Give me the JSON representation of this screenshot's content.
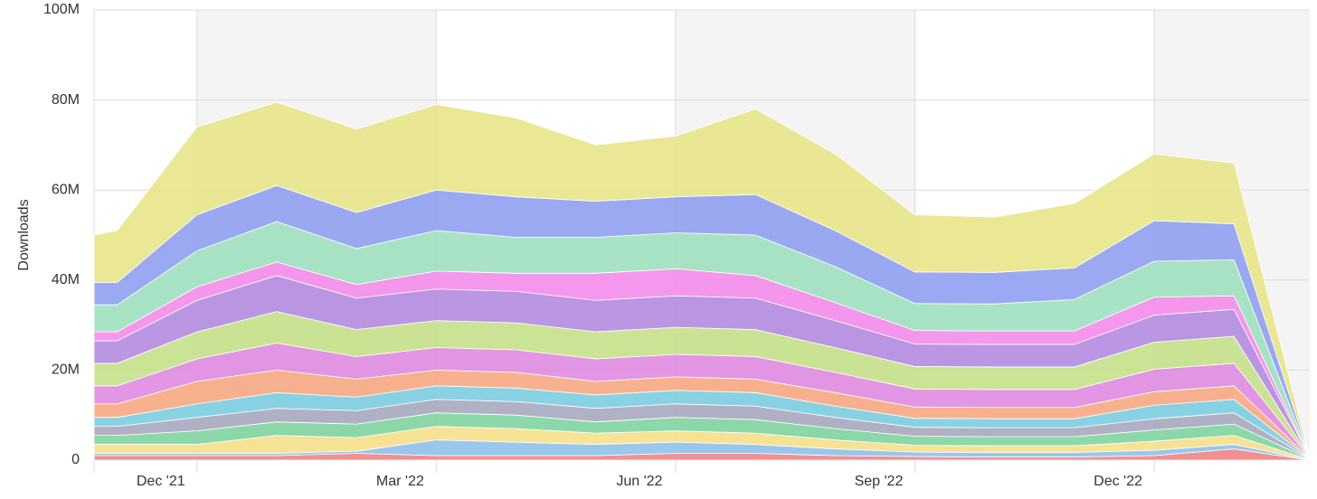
{
  "chart_data": {
    "type": "stacked_area",
    "y_label": "Downloads",
    "x": [
      -1.29,
      -1,
      0,
      1,
      2,
      3,
      4,
      5,
      6,
      7,
      8,
      9,
      10,
      11,
      12,
      13,
      13.95
    ],
    "xlim": [
      -1.29,
      13.95
    ],
    "xticks": [
      {
        "value": 0,
        "label": "Dec '21"
      },
      {
        "value": 3,
        "label": "Mar '22"
      },
      {
        "value": 6,
        "label": "Jun '22"
      },
      {
        "value": 9,
        "label": "Sep '22"
      },
      {
        "value": 12,
        "label": "Dec '22"
      }
    ],
    "ylim": [
      0,
      100000000
    ],
    "yticks": [
      {
        "value": 0,
        "label": "0"
      },
      {
        "value": 20000000,
        "label": "20M"
      },
      {
        "value": 40000000,
        "label": "40M"
      },
      {
        "value": 60000000,
        "label": "60M"
      },
      {
        "value": 80000000,
        "label": "80M"
      },
      {
        "value": 100000000,
        "label": "100M"
      }
    ],
    "grid": true,
    "series": [
      {
        "color": "#f08585",
        "values": [
          1000000,
          1000000,
          1000000,
          1000000,
          1500000,
          1000000,
          1000000,
          1000000,
          1500000,
          1500000,
          1000000,
          800000,
          700000,
          700000,
          1000000,
          2500000,
          0
        ]
      },
      {
        "color": "#8fc1ec",
        "values": [
          500000,
          500000,
          500000,
          500000,
          500000,
          3500000,
          3000000,
          2500000,
          2500000,
          2000000,
          1500000,
          1000000,
          1000000,
          1000000,
          1200000,
          1000000,
          0
        ]
      },
      {
        "color": "#f5e08a",
        "values": [
          2000000,
          2000000,
          2000000,
          4000000,
          3000000,
          3000000,
          3000000,
          2500000,
          2500000,
          2500000,
          2000000,
          1500000,
          1500000,
          1500000,
          2000000,
          2000000,
          100000
        ]
      },
      {
        "color": "#7fd4a0",
        "values": [
          2000000,
          2000000,
          3000000,
          3000000,
          3000000,
          3000000,
          3000000,
          2500000,
          3000000,
          3000000,
          2500000,
          2000000,
          2000000,
          2000000,
          2500000,
          2500000,
          100000
        ]
      },
      {
        "color": "#a9a9c0",
        "values": [
          2000000,
          2000000,
          3000000,
          3000000,
          3000000,
          3000000,
          3000000,
          3000000,
          3000000,
          3000000,
          2500000,
          2000000,
          2000000,
          2000000,
          2500000,
          2500000,
          50000
        ]
      },
      {
        "color": "#7ccde0",
        "values": [
          2000000,
          2000000,
          3000000,
          3500000,
          3000000,
          3000000,
          3000000,
          3000000,
          3000000,
          3000000,
          2500000,
          2000000,
          2000000,
          2000000,
          3000000,
          3000000,
          50000
        ]
      },
      {
        "color": "#f7a883",
        "values": [
          3000000,
          3000000,
          5000000,
          5000000,
          4000000,
          3500000,
          3500000,
          3000000,
          3000000,
          3000000,
          3000000,
          2500000,
          2500000,
          2500000,
          3000000,
          3000000,
          50000
        ]
      },
      {
        "color": "#e08be0",
        "values": [
          4000000,
          4000000,
          5000000,
          6000000,
          5000000,
          5000000,
          5000000,
          5000000,
          5000000,
          5000000,
          4500000,
          4000000,
          4000000,
          4000000,
          5000000,
          5000000,
          50000
        ]
      },
      {
        "color": "#c5e08a",
        "values": [
          5000000,
          5000000,
          6000000,
          7000000,
          6000000,
          6000000,
          6000000,
          6000000,
          6000000,
          6000000,
          5500000,
          5000000,
          5000000,
          5000000,
          6000000,
          6000000,
          50000
        ]
      },
      {
        "color": "#b48be0",
        "values": [
          5000000,
          5000000,
          7000000,
          8000000,
          7000000,
          7000000,
          7000000,
          7000000,
          7000000,
          7000000,
          6000000,
          5000000,
          5000000,
          5000000,
          6000000,
          6000000,
          20000
        ]
      },
      {
        "color": "#f48cea",
        "values": [
          2000000,
          2000000,
          3000000,
          3000000,
          3000000,
          4000000,
          4000000,
          6000000,
          6000000,
          5000000,
          4000000,
          3000000,
          3000000,
          3000000,
          4000000,
          3000000,
          10000
        ]
      },
      {
        "color": "#a0e0c0",
        "values": [
          6000000,
          6000000,
          8000000,
          9000000,
          8000000,
          9000000,
          8000000,
          8000000,
          8000000,
          9000000,
          8000000,
          6000000,
          6000000,
          7000000,
          8000000,
          8000000,
          10000
        ]
      },
      {
        "color": "#8fa0f0",
        "values": [
          5000000,
          5000000,
          8000000,
          8000000,
          8000000,
          9000000,
          9000000,
          8000000,
          8000000,
          9000000,
          8000000,
          7000000,
          7000000,
          7000000,
          9000000,
          8000000,
          10000
        ]
      },
      {
        "color": "#e8e48a",
        "values": [
          10500000,
          11500000,
          19500000,
          18500000,
          18500000,
          19000000,
          17500000,
          12500000,
          13500000,
          19000000,
          17000000,
          12700000,
          12300000,
          14300000,
          14800000,
          13500000,
          50000
        ]
      }
    ]
  }
}
